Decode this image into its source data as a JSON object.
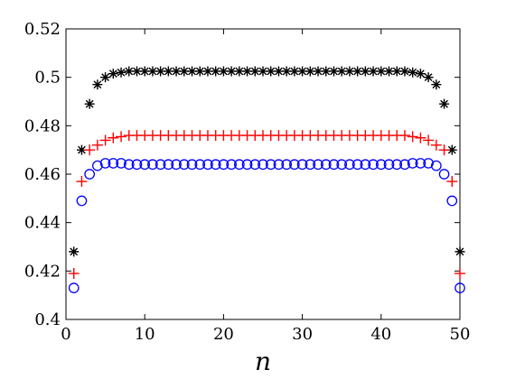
{
  "chart_data": {
    "type": "scatter",
    "title": "",
    "xlabel": "n",
    "ylabel": "",
    "xlim": [
      0,
      50
    ],
    "ylim": [
      0.4,
      0.52
    ],
    "xticks": [
      0,
      10,
      20,
      30,
      40,
      50
    ],
    "yticks": [
      0.4,
      0.42,
      0.44,
      0.46,
      0.48,
      0.5,
      0.52
    ],
    "xtick_labels": [
      "0",
      "10",
      "20",
      "30",
      "40",
      "50"
    ],
    "ytick_labels": [
      "0.4",
      "0.42",
      "0.44",
      "0.46",
      "0.48",
      "0.5",
      "0.52"
    ],
    "grid": false,
    "legend": "none",
    "x": [
      1,
      2,
      3,
      4,
      5,
      6,
      7,
      8,
      9,
      10,
      11,
      12,
      13,
      14,
      15,
      16,
      17,
      18,
      19,
      20,
      21,
      22,
      23,
      24,
      25,
      26,
      27,
      28,
      29,
      30,
      31,
      32,
      33,
      34,
      35,
      36,
      37,
      38,
      39,
      40,
      41,
      42,
      43,
      44,
      45,
      46,
      47,
      48,
      49,
      50
    ],
    "series": [
      {
        "marker": "asterisk",
        "color": "#000000",
        "values": [
          0.428,
          0.47,
          0.489,
          0.497,
          0.5,
          0.5015,
          0.502,
          0.5025,
          0.5025,
          0.5025,
          0.5025,
          0.5025,
          0.5025,
          0.5025,
          0.5025,
          0.5025,
          0.5025,
          0.5025,
          0.5025,
          0.5025,
          0.5025,
          0.5025,
          0.5025,
          0.5025,
          0.5025,
          0.5025,
          0.5025,
          0.5025,
          0.5025,
          0.5025,
          0.5025,
          0.5025,
          0.5025,
          0.5025,
          0.5025,
          0.5025,
          0.5025,
          0.5025,
          0.5025,
          0.5025,
          0.5025,
          0.5025,
          0.5025,
          0.502,
          0.5015,
          0.5,
          0.497,
          0.489,
          0.47,
          0.428
        ]
      },
      {
        "marker": "plus",
        "color": "#ff0000",
        "values": [
          0.419,
          0.457,
          0.47,
          0.472,
          0.474,
          0.475,
          0.4755,
          0.476,
          0.476,
          0.476,
          0.476,
          0.476,
          0.476,
          0.476,
          0.476,
          0.476,
          0.476,
          0.476,
          0.476,
          0.476,
          0.476,
          0.476,
          0.476,
          0.476,
          0.476,
          0.476,
          0.476,
          0.476,
          0.476,
          0.476,
          0.476,
          0.476,
          0.476,
          0.476,
          0.476,
          0.476,
          0.476,
          0.476,
          0.476,
          0.476,
          0.476,
          0.476,
          0.476,
          0.4755,
          0.475,
          0.474,
          0.472,
          0.47,
          0.457,
          0.419
        ]
      },
      {
        "marker": "circle",
        "color": "#0000ff",
        "values": [
          0.413,
          0.449,
          0.46,
          0.4635,
          0.4645,
          0.4645,
          0.4645,
          0.464,
          0.464,
          0.464,
          0.464,
          0.464,
          0.464,
          0.464,
          0.464,
          0.464,
          0.464,
          0.464,
          0.464,
          0.464,
          0.464,
          0.464,
          0.464,
          0.464,
          0.464,
          0.464,
          0.464,
          0.464,
          0.464,
          0.464,
          0.464,
          0.464,
          0.464,
          0.464,
          0.464,
          0.464,
          0.464,
          0.464,
          0.464,
          0.464,
          0.464,
          0.464,
          0.464,
          0.4645,
          0.4645,
          0.4645,
          0.4635,
          0.46,
          0.449,
          0.413
        ]
      }
    ]
  }
}
